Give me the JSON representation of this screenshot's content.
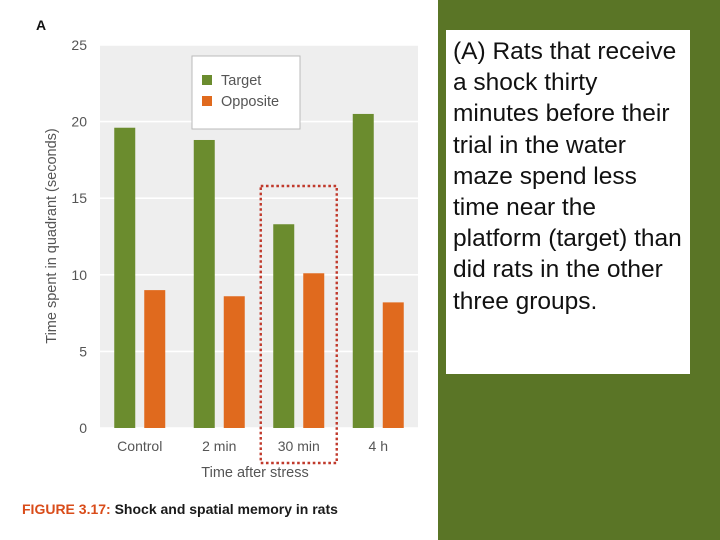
{
  "caption_box": {
    "text": "(A) Rats that receive a shock thirty minutes before their trial in the water maze spend less time near the platform (target) than did rats in the other three groups."
  },
  "figure_caption": {
    "label": "FIGURE 3.17:",
    "title": " Shock and spatial memory in rats"
  },
  "colors": {
    "target": "#6b8c2e",
    "opposite": "#e06a1e",
    "highlight": "#c0392b",
    "panel": "#5a7526"
  },
  "chart_data": {
    "type": "bar",
    "panel_label": "A",
    "categories": [
      "Control",
      "2 min",
      "30 min",
      "4 h"
    ],
    "series": [
      {
        "name": "Target",
        "values": [
          19.6,
          18.8,
          13.3,
          20.5
        ]
      },
      {
        "name": "Opposite",
        "values": [
          9.0,
          8.6,
          10.1,
          8.2
        ]
      }
    ],
    "xlabel": "Time after stress",
    "ylabel": "Time spent in quadrant (seconds)",
    "ylim": [
      0,
      25
    ],
    "yticks": [
      0,
      5,
      10,
      15,
      20,
      25
    ],
    "grid": true,
    "legend": "top-center",
    "highlighted_category": "30 min"
  }
}
